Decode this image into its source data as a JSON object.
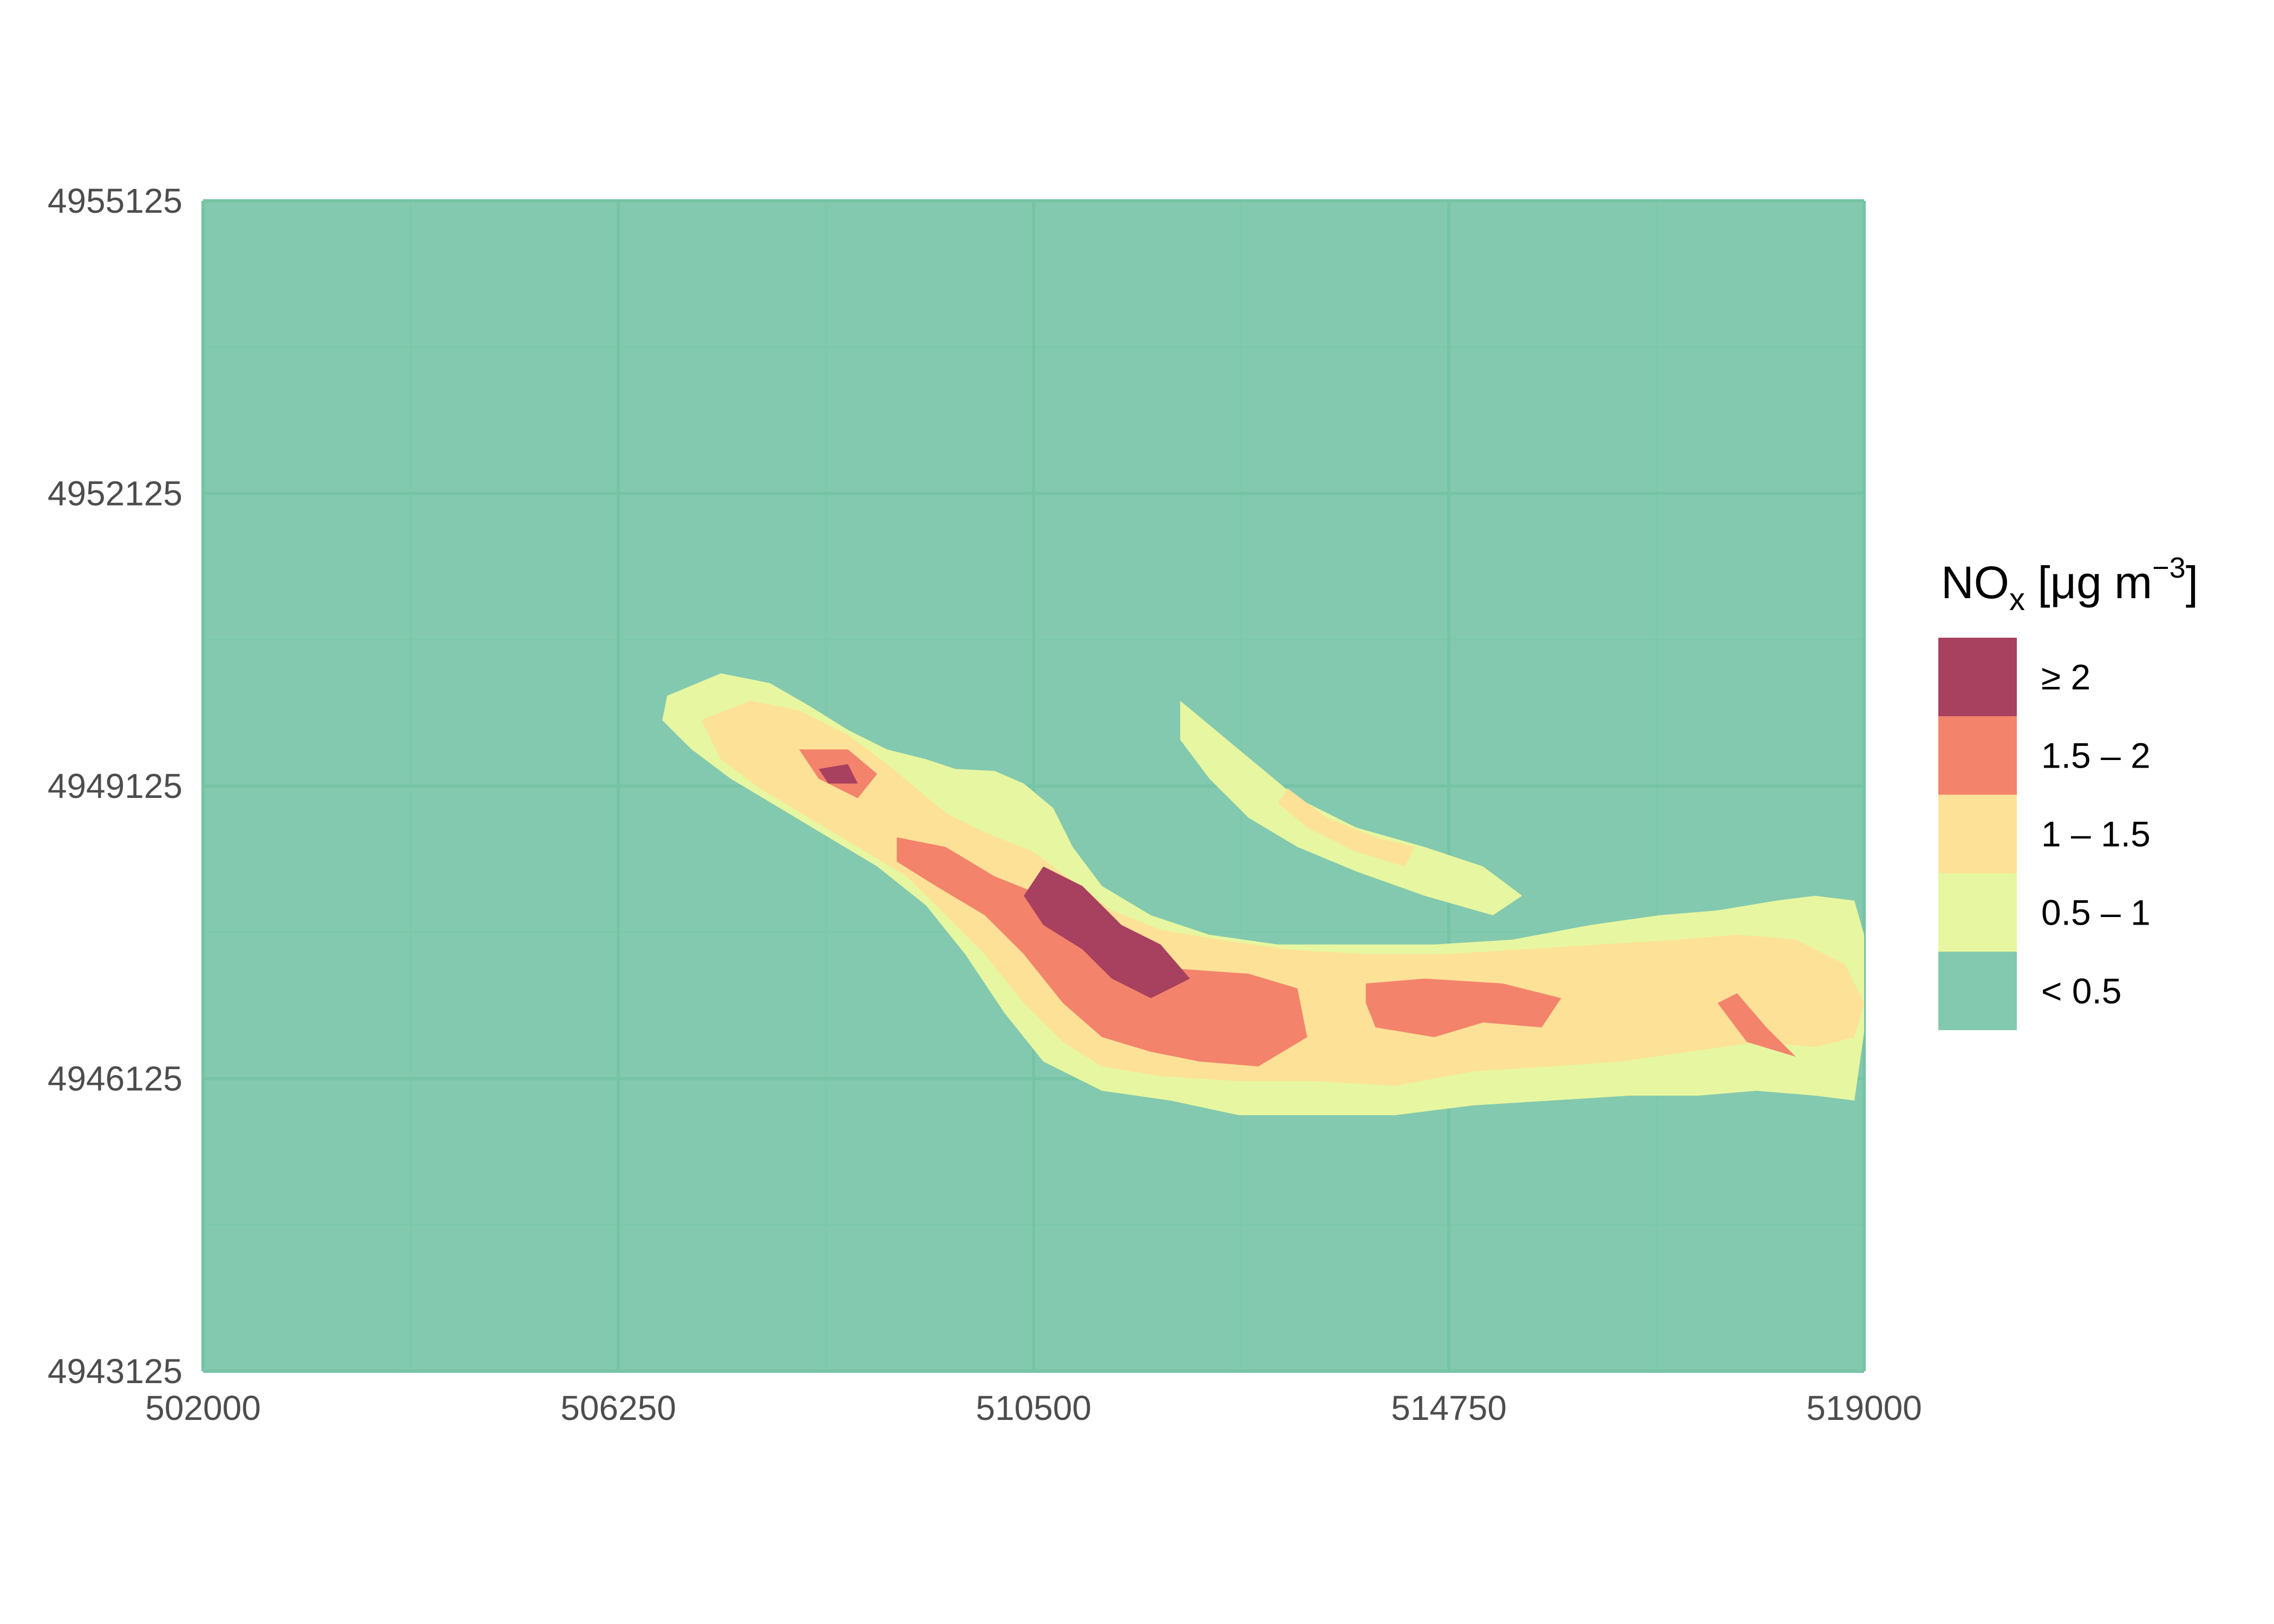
{
  "chart_data": {
    "type": "contour-map",
    "title": "",
    "xlabel": "",
    "ylabel": "",
    "xlim": [
      502000,
      519000
    ],
    "ylim": [
      4943125,
      4955125
    ],
    "x_ticks": [
      "502000",
      "506250",
      "510500",
      "514750",
      "519000"
    ],
    "y_ticks": [
      "4955125",
      "4952125",
      "4949125",
      "4946125",
      "4943125"
    ],
    "grid": "on",
    "legend": {
      "position": "right",
      "title_main": "NO",
      "title_sub": "x",
      "title_unit_prefix": " [μg m",
      "title_sup": "−3",
      "title_close": "]",
      "levels": [
        {
          "label": "≥ 2",
          "color": "#a8405f"
        },
        {
          "label": "1.5 – 2",
          "color": "#f3836b"
        },
        {
          "label": "1 – 1.5",
          "color": "#fde197"
        },
        {
          "label": "0.5 – 1",
          "color": "#e7f6a0"
        },
        {
          "label": "< 0.5",
          "color": "#83c9af"
        }
      ]
    },
    "contours": [
      {
        "level": "0.5 – 1",
        "polygons": [
          [
            [
              506750,
              4950050
            ],
            [
              507300,
              4950280
            ],
            [
              507800,
              4950180
            ],
            [
              508200,
              4949950
            ],
            [
              508600,
              4949700
            ],
            [
              509000,
              4949500
            ],
            [
              509400,
              4949400
            ],
            [
              509700,
              4949300
            ],
            [
              510100,
              4949280
            ],
            [
              510400,
              4949150
            ],
            [
              510700,
              4948900
            ],
            [
              510900,
              4948500
            ],
            [
              511200,
              4948100
            ],
            [
              511700,
              4947800
            ],
            [
              512300,
              4947600
            ],
            [
              513000,
              4947500
            ],
            [
              513800,
              4947500
            ],
            [
              514600,
              4947500
            ],
            [
              515400,
              4947550
            ],
            [
              516200,
              4947700
            ],
            [
              516900,
              4947800
            ],
            [
              517500,
              4947850
            ],
            [
              518100,
              4947950
            ],
            [
              518500,
              4948000
            ],
            [
              518900,
              4947950
            ],
            [
              519000,
              4947600
            ],
            [
              519000,
              4946600
            ],
            [
              518900,
              4945900
            ],
            [
              518500,
              4945950
            ],
            [
              517900,
              4946000
            ],
            [
              517300,
              4945950
            ],
            [
              516600,
              4945950
            ],
            [
              515800,
              4945900
            ],
            [
              515000,
              4945850
            ],
            [
              514200,
              4945750
            ],
            [
              513400,
              4945750
            ],
            [
              512600,
              4945750
            ],
            [
              511900,
              4945900
            ],
            [
              511200,
              4946000
            ],
            [
              510600,
              4946300
            ],
            [
              510200,
              4946800
            ],
            [
              509800,
              4947400
            ],
            [
              509400,
              4947900
            ],
            [
              508900,
              4948300
            ],
            [
              508400,
              4948600
            ],
            [
              507900,
              4948900
            ],
            [
              507400,
              4949200
            ],
            [
              507000,
              4949500
            ],
            [
              506700,
              4949800
            ]
          ]
        ]
      },
      {
        "level": "0.5 – 1",
        "polygons": [
          [
            [
              512000,
              4950000
            ],
            [
              512600,
              4949500
            ],
            [
              513200,
              4949000
            ],
            [
              513800,
              4948700
            ],
            [
              514500,
              4948500
            ],
            [
              515100,
              4948300
            ],
            [
              515500,
              4948000
            ],
            [
              515200,
              4947800
            ],
            [
              514500,
              4948000
            ],
            [
              513800,
              4948250
            ],
            [
              513200,
              4948500
            ],
            [
              512700,
              4948800
            ],
            [
              512300,
              4949200
            ],
            [
              512000,
              4949600
            ]
          ]
        ]
      },
      {
        "level": "1 – 1.5",
        "polygons": [
          [
            [
              507100,
              4949800
            ],
            [
              507600,
              4950000
            ],
            [
              508100,
              4949900
            ],
            [
              508600,
              4949650
            ],
            [
              509000,
              4949350
            ],
            [
              509300,
              4949100
            ],
            [
              509600,
              4948850
            ],
            [
              510000,
              4948650
            ],
            [
              510500,
              4948450
            ],
            [
              510900,
              4948150
            ],
            [
              511300,
              4947850
            ],
            [
              511800,
              4947650
            ],
            [
              512400,
              4947550
            ],
            [
              513100,
              4947450
            ],
            [
              513900,
              4947400
            ],
            [
              514700,
              4947400
            ],
            [
              515500,
              4947450
            ],
            [
              516300,
              4947500
            ],
            [
              517100,
              4947550
            ],
            [
              517700,
              4947600
            ],
            [
              518300,
              4947550
            ],
            [
              518800,
              4947300
            ],
            [
              519000,
              4946900
            ],
            [
              518900,
              4946550
            ],
            [
              518500,
              4946450
            ],
            [
              517900,
              4946500
            ],
            [
              517200,
              4946400
            ],
            [
              516500,
              4946300
            ],
            [
              515800,
              4946250
            ],
            [
              515000,
              4946200
            ],
            [
              514200,
              4946050
            ],
            [
              513400,
              4946100
            ],
            [
              512600,
              4946100
            ],
            [
              511800,
              4946150
            ],
            [
              511200,
              4946250
            ],
            [
              510800,
              4946500
            ],
            [
              510400,
              4946900
            ],
            [
              510000,
              4947400
            ],
            [
              509600,
              4947800
            ],
            [
              509200,
              4948200
            ],
            [
              508700,
              4948500
            ],
            [
              508200,
              4948800
            ],
            [
              507700,
              4949100
            ],
            [
              507300,
              4949400
            ]
          ]
        ]
      },
      {
        "level": "1 – 1.5",
        "polygons": [
          [
            [
              513100,
              4949100
            ],
            [
              513500,
              4948800
            ],
            [
              514000,
              4948600
            ],
            [
              514400,
              4948500
            ],
            [
              514300,
              4948300
            ],
            [
              513800,
              4948450
            ],
            [
              513300,
              4948700
            ],
            [
              513000,
              4948950
            ]
          ]
        ]
      },
      {
        "level": "1.5 – 2",
        "polygons": [
          [
            [
              508100,
              4949500
            ],
            [
              508600,
              4949500
            ],
            [
              508900,
              4949250
            ],
            [
              508700,
              4949000
            ],
            [
              508300,
              4949200
            ]
          ]
        ]
      },
      {
        "level": "1.5 – 2",
        "polygons": [
          [
            [
              509100,
              4948600
            ],
            [
              509600,
              4948500
            ],
            [
              510100,
              4948200
            ],
            [
              510600,
              4948000
            ],
            [
              511000,
              4947650
            ],
            [
              511500,
              4947450
            ],
            [
              512000,
              4947250
            ],
            [
              512700,
              4947200
            ],
            [
              513200,
              4947050
            ],
            [
              513300,
              4946550
            ],
            [
              512800,
              4946250
            ],
            [
              512200,
              4946300
            ],
            [
              511700,
              4946400
            ],
            [
              511200,
              4946550
            ],
            [
              510800,
              4946900
            ],
            [
              510400,
              4947400
            ],
            [
              510000,
              4947800
            ],
            [
              509500,
              4948100
            ],
            [
              509100,
              4948350
            ]
          ]
        ]
      },
      {
        "level": "1.5 – 2",
        "polygons": [
          [
            [
              513900,
              4947100
            ],
            [
              514500,
              4947150
            ],
            [
              515300,
              4947100
            ],
            [
              515900,
              4946950
            ],
            [
              515700,
              4946650
            ],
            [
              515100,
              4946700
            ],
            [
              514600,
              4946550
            ],
            [
              514000,
              4946650
            ],
            [
              513900,
              4946900
            ]
          ]
        ]
      },
      {
        "level": "1.5 – 2",
        "polygons": [
          [
            [
              517500,
              4946900
            ],
            [
              517800,
              4946500
            ],
            [
              518300,
              4946350
            ],
            [
              518000,
              4946650
            ],
            [
              517700,
              4947000
            ]
          ]
        ]
      },
      {
        "level": "≥ 2",
        "polygons": [
          [
            [
              510600,
              4948300
            ],
            [
              511000,
              4948100
            ],
            [
              511400,
              4947700
            ],
            [
              511800,
              4947500
            ],
            [
              512100,
              4947150
            ],
            [
              511700,
              4946950
            ],
            [
              511300,
              4947150
            ],
            [
              511000,
              4947450
            ],
            [
              510600,
              4947700
            ],
            [
              510400,
              4948000
            ]
          ]
        ]
      },
      {
        "level": "≥ 2",
        "polygons": [
          [
            [
              508300,
              4949300
            ],
            [
              508600,
              4949350
            ],
            [
              508700,
              4949150
            ],
            [
              508400,
              4949150
            ]
          ]
        ]
      }
    ]
  }
}
